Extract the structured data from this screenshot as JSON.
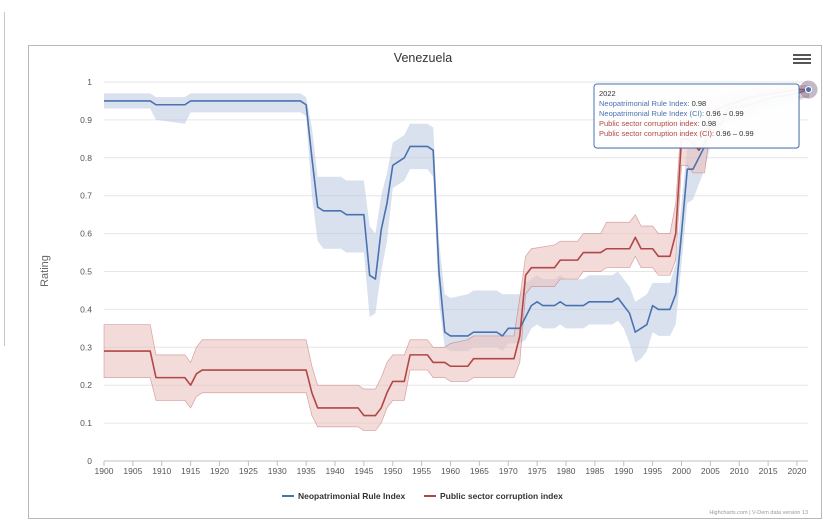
{
  "chart_data": {
    "type": "line",
    "title": "Venezuela",
    "ylabel": "Rating",
    "xlabel": "",
    "xlim": [
      1900,
      2022
    ],
    "ylim": [
      0,
      1
    ],
    "x_ticks": [
      "1900",
      "1905",
      "1910",
      "1915",
      "1920",
      "1925",
      "1930",
      "1935",
      "1940",
      "1945",
      "1950",
      "1955",
      "1960",
      "1965",
      "1970",
      "1975",
      "1980",
      "1985",
      "1990",
      "1995",
      "2000",
      "2005",
      "2010",
      "2015",
      "2020"
    ],
    "y_ticks": [
      "0",
      "0.1",
      "0.2",
      "0.3",
      "0.4",
      "0.5",
      "0.6",
      "0.7",
      "0.8",
      "0.9",
      "1"
    ],
    "grid": true,
    "legend_position": "bottom",
    "series": [
      {
        "name": "Neopatrimonial Rule Index",
        "color": "#4a72b0",
        "band_color": "#b9c9e0",
        "points": [
          [
            1900,
            0.95
          ],
          [
            1908,
            0.95
          ],
          [
            1909,
            0.94
          ],
          [
            1914,
            0.94
          ],
          [
            1915,
            0.95
          ],
          [
            1934,
            0.95
          ],
          [
            1935,
            0.94
          ],
          [
            1936,
            0.8
          ],
          [
            1937,
            0.67
          ],
          [
            1938,
            0.66
          ],
          [
            1941,
            0.66
          ],
          [
            1942,
            0.65
          ],
          [
            1945,
            0.65
          ],
          [
            1946,
            0.49
          ],
          [
            1947,
            0.48
          ],
          [
            1948,
            0.61
          ],
          [
            1949,
            0.68
          ],
          [
            1950,
            0.78
          ],
          [
            1951,
            0.79
          ],
          [
            1952,
            0.8
          ],
          [
            1953,
            0.83
          ],
          [
            1956,
            0.83
          ],
          [
            1957,
            0.82
          ],
          [
            1958,
            0.5
          ],
          [
            1959,
            0.34
          ],
          [
            1960,
            0.33
          ],
          [
            1963,
            0.33
          ],
          [
            1964,
            0.34
          ],
          [
            1968,
            0.34
          ],
          [
            1969,
            0.33
          ],
          [
            1970,
            0.35
          ],
          [
            1972,
            0.35
          ],
          [
            1973,
            0.38
          ],
          [
            1974,
            0.41
          ],
          [
            1975,
            0.42
          ],
          [
            1976,
            0.41
          ],
          [
            1978,
            0.41
          ],
          [
            1979,
            0.42
          ],
          [
            1980,
            0.41
          ],
          [
            1983,
            0.41
          ],
          [
            1984,
            0.42
          ],
          [
            1988,
            0.42
          ],
          [
            1989,
            0.43
          ],
          [
            1990,
            0.41
          ],
          [
            1991,
            0.39
          ],
          [
            1992,
            0.34
          ],
          [
            1993,
            0.35
          ],
          [
            1994,
            0.36
          ],
          [
            1995,
            0.41
          ],
          [
            1996,
            0.4
          ],
          [
            1998,
            0.4
          ],
          [
            1999,
            0.44
          ],
          [
            2000,
            0.6
          ],
          [
            2001,
            0.77
          ],
          [
            2002,
            0.77
          ],
          [
            2003,
            0.8
          ],
          [
            2004,
            0.83
          ],
          [
            2005,
            0.88
          ],
          [
            2007,
            0.89
          ],
          [
            2008,
            0.93
          ],
          [
            2012,
            0.94
          ],
          [
            2016,
            0.96
          ],
          [
            2020,
            0.97
          ],
          [
            2022,
            0.98
          ]
        ],
        "band": [
          [
            1900,
            0.93,
            0.97
          ],
          [
            1908,
            0.93,
            0.97
          ],
          [
            1909,
            0.9,
            0.96
          ],
          [
            1914,
            0.89,
            0.96
          ],
          [
            1915,
            0.92,
            0.97
          ],
          [
            1934,
            0.92,
            0.97
          ],
          [
            1935,
            0.91,
            0.96
          ],
          [
            1936,
            0.7,
            0.88
          ],
          [
            1937,
            0.58,
            0.75
          ],
          [
            1938,
            0.56,
            0.75
          ],
          [
            1941,
            0.56,
            0.75
          ],
          [
            1942,
            0.55,
            0.74
          ],
          [
            1945,
            0.55,
            0.74
          ],
          [
            1946,
            0.38,
            0.62
          ],
          [
            1947,
            0.39,
            0.6
          ],
          [
            1948,
            0.5,
            0.7
          ],
          [
            1949,
            0.58,
            0.76
          ],
          [
            1950,
            0.72,
            0.84
          ],
          [
            1951,
            0.73,
            0.85
          ],
          [
            1952,
            0.74,
            0.86
          ],
          [
            1953,
            0.77,
            0.89
          ],
          [
            1956,
            0.77,
            0.89
          ],
          [
            1957,
            0.75,
            0.88
          ],
          [
            1958,
            0.42,
            0.58
          ],
          [
            1959,
            0.3,
            0.44
          ],
          [
            1960,
            0.29,
            0.43
          ],
          [
            1963,
            0.29,
            0.44
          ],
          [
            1964,
            0.3,
            0.45
          ],
          [
            1968,
            0.3,
            0.45
          ],
          [
            1969,
            0.29,
            0.44
          ],
          [
            1970,
            0.31,
            0.44
          ],
          [
            1972,
            0.31,
            0.44
          ],
          [
            1973,
            0.32,
            0.47
          ],
          [
            1974,
            0.35,
            0.48
          ],
          [
            1975,
            0.36,
            0.49
          ],
          [
            1976,
            0.35,
            0.48
          ],
          [
            1978,
            0.35,
            0.48
          ],
          [
            1979,
            0.36,
            0.49
          ],
          [
            1980,
            0.35,
            0.48
          ],
          [
            1983,
            0.35,
            0.48
          ],
          [
            1984,
            0.36,
            0.49
          ],
          [
            1988,
            0.36,
            0.49
          ],
          [
            1989,
            0.37,
            0.5
          ],
          [
            1990,
            0.35,
            0.48
          ],
          [
            1991,
            0.31,
            0.46
          ],
          [
            1992,
            0.26,
            0.42
          ],
          [
            1993,
            0.27,
            0.43
          ],
          [
            1994,
            0.29,
            0.44
          ],
          [
            1995,
            0.34,
            0.47
          ],
          [
            1996,
            0.33,
            0.47
          ],
          [
            1998,
            0.33,
            0.47
          ],
          [
            1999,
            0.36,
            0.52
          ],
          [
            2000,
            0.52,
            0.68
          ],
          [
            2001,
            0.68,
            0.83
          ],
          [
            2002,
            0.69,
            0.84
          ],
          [
            2003,
            0.73,
            0.87
          ],
          [
            2004,
            0.77,
            0.9
          ],
          [
            2005,
            0.83,
            0.93
          ],
          [
            2007,
            0.85,
            0.94
          ],
          [
            2008,
            0.89,
            0.96
          ],
          [
            2012,
            0.91,
            0.97
          ],
          [
            2016,
            0.93,
            0.98
          ],
          [
            2020,
            0.95,
            0.99
          ],
          [
            2022,
            0.96,
            0.99
          ]
        ]
      },
      {
        "name": "Public sector corruption index",
        "color": "#b24747",
        "band_color": "#e9c3c0",
        "points": [
          [
            1900,
            0.29
          ],
          [
            1908,
            0.29
          ],
          [
            1909,
            0.22
          ],
          [
            1914,
            0.22
          ],
          [
            1915,
            0.2
          ],
          [
            1916,
            0.23
          ],
          [
            1917,
            0.24
          ],
          [
            1935,
            0.24
          ],
          [
            1936,
            0.18
          ],
          [
            1937,
            0.14
          ],
          [
            1944,
            0.14
          ],
          [
            1945,
            0.12
          ],
          [
            1947,
            0.12
          ],
          [
            1948,
            0.14
          ],
          [
            1949,
            0.18
          ],
          [
            1950,
            0.21
          ],
          [
            1952,
            0.21
          ],
          [
            1953,
            0.28
          ],
          [
            1956,
            0.28
          ],
          [
            1957,
            0.26
          ],
          [
            1959,
            0.26
          ],
          [
            1960,
            0.25
          ],
          [
            1963,
            0.25
          ],
          [
            1964,
            0.27
          ],
          [
            1971,
            0.27
          ],
          [
            1972,
            0.33
          ],
          [
            1973,
            0.49
          ],
          [
            1974,
            0.51
          ],
          [
            1978,
            0.51
          ],
          [
            1979,
            0.53
          ],
          [
            1982,
            0.53
          ],
          [
            1983,
            0.55
          ],
          [
            1986,
            0.55
          ],
          [
            1987,
            0.56
          ],
          [
            1991,
            0.56
          ],
          [
            1992,
            0.59
          ],
          [
            1993,
            0.56
          ],
          [
            1995,
            0.56
          ],
          [
            1996,
            0.54
          ],
          [
            1998,
            0.54
          ],
          [
            1999,
            0.6
          ],
          [
            2000,
            0.85
          ],
          [
            2001,
            0.85
          ],
          [
            2002,
            0.84
          ],
          [
            2003,
            0.82
          ],
          [
            2004,
            0.84
          ],
          [
            2005,
            0.92
          ],
          [
            2008,
            0.94
          ],
          [
            2012,
            0.96
          ],
          [
            2016,
            0.97
          ],
          [
            2020,
            0.98
          ],
          [
            2022,
            0.98
          ]
        ],
        "band": [
          [
            1900,
            0.22,
            0.36
          ],
          [
            1908,
            0.22,
            0.36
          ],
          [
            1909,
            0.16,
            0.28
          ],
          [
            1914,
            0.16,
            0.28
          ],
          [
            1915,
            0.14,
            0.26
          ],
          [
            1916,
            0.17,
            0.3
          ],
          [
            1917,
            0.18,
            0.32
          ],
          [
            1935,
            0.18,
            0.32
          ],
          [
            1936,
            0.12,
            0.25
          ],
          [
            1937,
            0.09,
            0.2
          ],
          [
            1944,
            0.09,
            0.2
          ],
          [
            1945,
            0.08,
            0.19
          ],
          [
            1947,
            0.08,
            0.19
          ],
          [
            1948,
            0.1,
            0.22
          ],
          [
            1949,
            0.14,
            0.26
          ],
          [
            1950,
            0.16,
            0.28
          ],
          [
            1952,
            0.16,
            0.28
          ],
          [
            1953,
            0.24,
            0.32
          ],
          [
            1956,
            0.24,
            0.32
          ],
          [
            1957,
            0.22,
            0.3
          ],
          [
            1959,
            0.22,
            0.3
          ],
          [
            1960,
            0.21,
            0.31
          ],
          [
            1963,
            0.21,
            0.32
          ],
          [
            1964,
            0.22,
            0.33
          ],
          [
            1971,
            0.22,
            0.33
          ],
          [
            1972,
            0.26,
            0.43
          ],
          [
            1973,
            0.44,
            0.54
          ],
          [
            1974,
            0.46,
            0.56
          ],
          [
            1978,
            0.46,
            0.57
          ],
          [
            1979,
            0.48,
            0.58
          ],
          [
            1982,
            0.48,
            0.58
          ],
          [
            1983,
            0.5,
            0.6
          ],
          [
            1986,
            0.5,
            0.6
          ],
          [
            1987,
            0.51,
            0.63
          ],
          [
            1991,
            0.51,
            0.63
          ],
          [
            1992,
            0.54,
            0.65
          ],
          [
            1993,
            0.51,
            0.62
          ],
          [
            1995,
            0.51,
            0.62
          ],
          [
            1996,
            0.49,
            0.6
          ],
          [
            1998,
            0.49,
            0.6
          ],
          [
            1999,
            0.53,
            0.68
          ],
          [
            2000,
            0.78,
            0.9
          ],
          [
            2001,
            0.78,
            0.9
          ],
          [
            2002,
            0.76,
            0.89
          ],
          [
            2003,
            0.76,
            0.89
          ],
          [
            2004,
            0.76,
            0.92
          ],
          [
            2005,
            0.88,
            0.95
          ],
          [
            2008,
            0.9,
            0.97
          ],
          [
            2012,
            0.93,
            0.98
          ],
          [
            2016,
            0.95,
            0.99
          ],
          [
            2020,
            0.96,
            0.99
          ],
          [
            2022,
            0.96,
            0.99
          ]
        ]
      }
    ],
    "tooltip": {
      "year": "2022",
      "lines": [
        {
          "label": "Neopatrimonial Rule Index",
          "value": "0.98",
          "color": "#4a72b0"
        },
        {
          "label": "Neopatrimonial Rule Index (CI)",
          "value": "0.96 – 0.99",
          "color": "#4a72b0"
        },
        {
          "label": "Public sector corruption index",
          "value": "0.98",
          "color": "#b24747"
        },
        {
          "label": "Public sector corruption index (CI)",
          "value": "0.96 – 0.99",
          "color": "#b24747"
        }
      ]
    },
    "credits": "Highcharts.com | V-Dem data version 13"
  }
}
